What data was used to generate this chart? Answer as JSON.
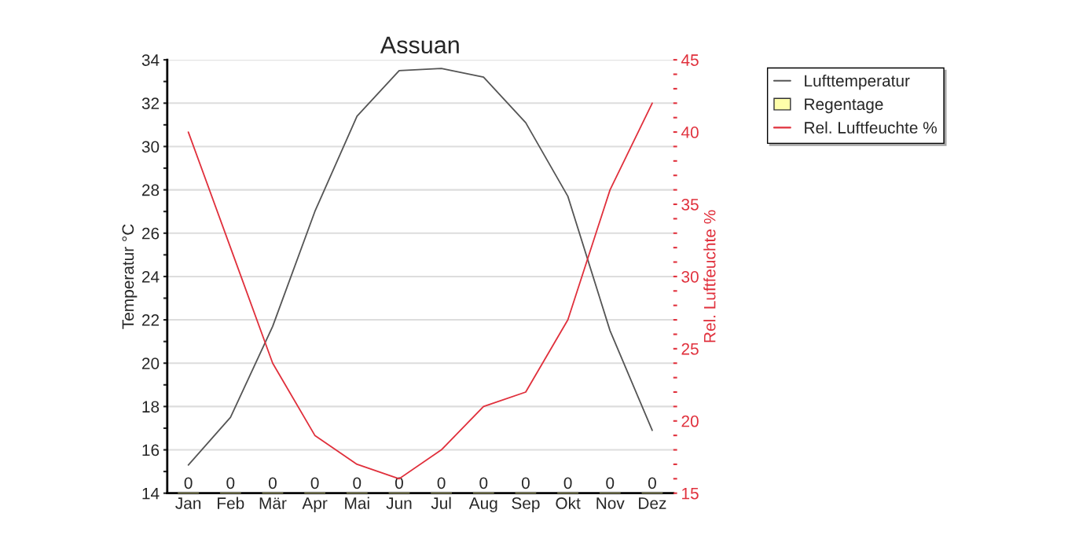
{
  "chart_data": {
    "type": "line",
    "title": "Assuan",
    "ylabel": "Temperatur °C",
    "y2label": "Rel. Luftfeuchte %",
    "categories": [
      "Jan",
      "Feb",
      "Mär",
      "Apr",
      "Mai",
      "Jun",
      "Jul",
      "Aug",
      "Sep",
      "Okt",
      "Nov",
      "Dez"
    ],
    "series": [
      {
        "name": "Lufttemperatur",
        "color": "#555555",
        "values": [
          15.3,
          17.5,
          21.7,
          27.0,
          31.4,
          33.5,
          33.6,
          33.2,
          31.1,
          27.7,
          21.5,
          16.9
        ]
      },
      {
        "name": "Regentage",
        "type": "bar",
        "color": "#ffffaa",
        "base": [
          14,
          14,
          14,
          14,
          14,
          14,
          14,
          14,
          14,
          14,
          14,
          14
        ],
        "value_labels": [
          "0",
          "0",
          "0",
          "0",
          "0",
          "0",
          "0",
          "0",
          "0",
          "0",
          "0",
          "0"
        ],
        "values": [
          0,
          0,
          0,
          0,
          0,
          0,
          0,
          0,
          0,
          0,
          0,
          0
        ]
      },
      {
        "name": "Rel. Luftfeuchte %",
        "axis": "y2",
        "color": "#e0303c",
        "values": [
          40,
          32,
          24,
          19,
          17,
          16,
          18,
          21,
          22,
          27,
          36,
          42
        ]
      }
    ],
    "ylim": [
      14,
      34
    ],
    "yticks": [
      14,
      {
        "value": 15,
        "label": null
      },
      16,
      {
        "value": 17,
        "label": null
      },
      18,
      {
        "value": 19,
        "label": null
      },
      20,
      {
        "value": 21,
        "label": null
      },
      22,
      {
        "value": 23,
        "label": null
      },
      24,
      {
        "value": 25,
        "label": null
      },
      26,
      {
        "value": 27,
        "label": null
      },
      28,
      {
        "value": 29,
        "label": null
      },
      30,
      {
        "value": 31,
        "label": null
      },
      32,
      {
        "value": 33,
        "label": null
      },
      34
    ],
    "y2lim": [
      15,
      45
    ],
    "y2ticks": [
      15,
      {
        "value": 16,
        "label": null
      },
      {
        "value": 17,
        "label": null
      },
      {
        "value": 18,
        "label": null
      },
      {
        "value": 19,
        "label": null
      },
      20,
      {
        "value": 21,
        "label": null
      },
      {
        "value": 22,
        "label": null
      },
      {
        "value": 23,
        "label": null
      },
      {
        "value": 24,
        "label": null
      },
      25,
      {
        "value": 26,
        "label": null
      },
      {
        "value": 27,
        "label": null
      },
      {
        "value": 28,
        "label": null
      },
      {
        "value": 29,
        "label": null
      },
      30,
      {
        "value": 31,
        "label": null
      },
      {
        "value": 32,
        "label": null
      },
      {
        "value": 33,
        "label": null
      },
      {
        "value": 34,
        "label": null
      },
      35,
      {
        "value": 36,
        "label": null
      },
      {
        "value": 37,
        "label": null
      },
      {
        "value": 38,
        "label": null
      },
      {
        "value": 39,
        "label": null
      },
      40,
      {
        "value": 41,
        "label": null
      },
      {
        "value": 42,
        "label": null
      },
      {
        "value": 43,
        "label": null
      },
      {
        "value": 44,
        "label": null
      },
      45
    ],
    "grid": "y",
    "legend": "top right",
    "marker": "none"
  }
}
